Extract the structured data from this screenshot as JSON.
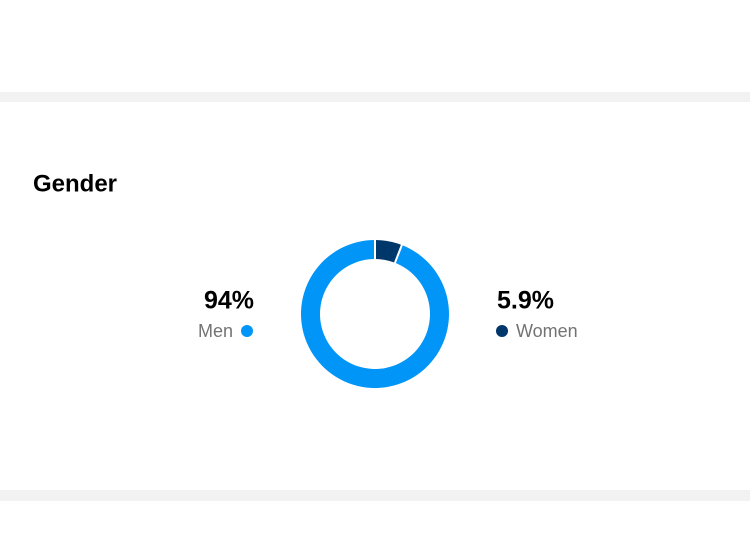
{
  "chart_data": {
    "type": "donut",
    "title": "Gender",
    "categories": [
      "Men",
      "Women"
    ],
    "values": [
      94,
      5.9
    ],
    "value_labels": [
      "94%",
      "5.9%"
    ],
    "colors": [
      "#0095f6",
      "#00376b"
    ]
  }
}
